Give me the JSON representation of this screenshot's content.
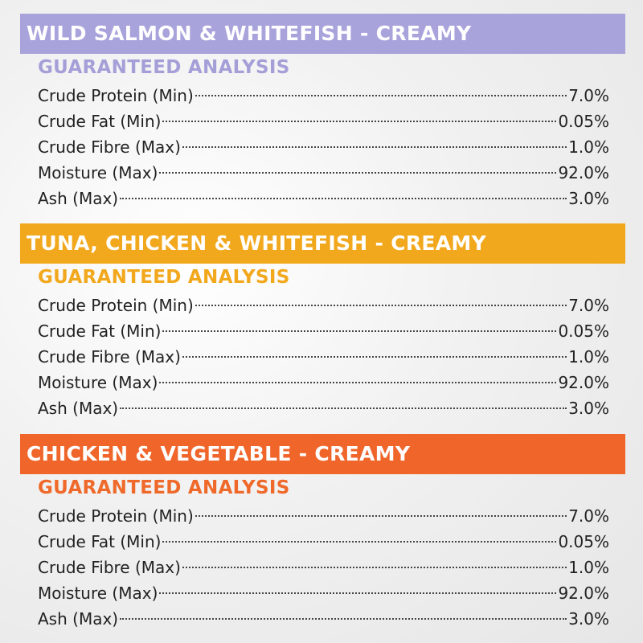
{
  "sections": [
    {
      "title": "WILD SALMON & WHITEFISH - CREAMY",
      "subtitle": "GUARANTEED ANALYSIS",
      "rows": [
        [
          "Crude Protein (Min)",
          "7.0%"
        ],
        [
          "Crude Fat (Min)",
          "0.05%"
        ],
        [
          "Crude Fibre (Max)",
          "1.0%"
        ],
        [
          "Moisture (Max)",
          "92.0%"
        ],
        [
          "Ash (Max)",
          "3.0%"
        ]
      ]
    },
    {
      "title": "TUNA, CHICKEN & WHITEFISH - CREAMY",
      "subtitle": "GUARANTEED ANALYSIS",
      "rows": [
        [
          "Crude Protein (Min)",
          "7.0%"
        ],
        [
          "Crude Fat (Min)",
          "0.05%"
        ],
        [
          "Crude Fibre (Max)",
          "1.0%"
        ],
        [
          "Moisture (Max)",
          "92.0%"
        ],
        [
          "Ash (Max)",
          "3.0%"
        ]
      ]
    },
    {
      "title": "CHICKEN & VEGETABLE - CREAMY",
      "subtitle": "GUARANTEED ANALYSIS",
      "rows": [
        [
          "Crude Protein (Min)",
          "7.0%"
        ],
        [
          "Crude Fat (Min)",
          "0.05%"
        ],
        [
          "Crude Fibre (Max)",
          "1.0%"
        ],
        [
          "Moisture (Max)",
          "92.0%"
        ],
        [
          "Ash (Max)",
          "3.0%"
        ]
      ]
    }
  ]
}
